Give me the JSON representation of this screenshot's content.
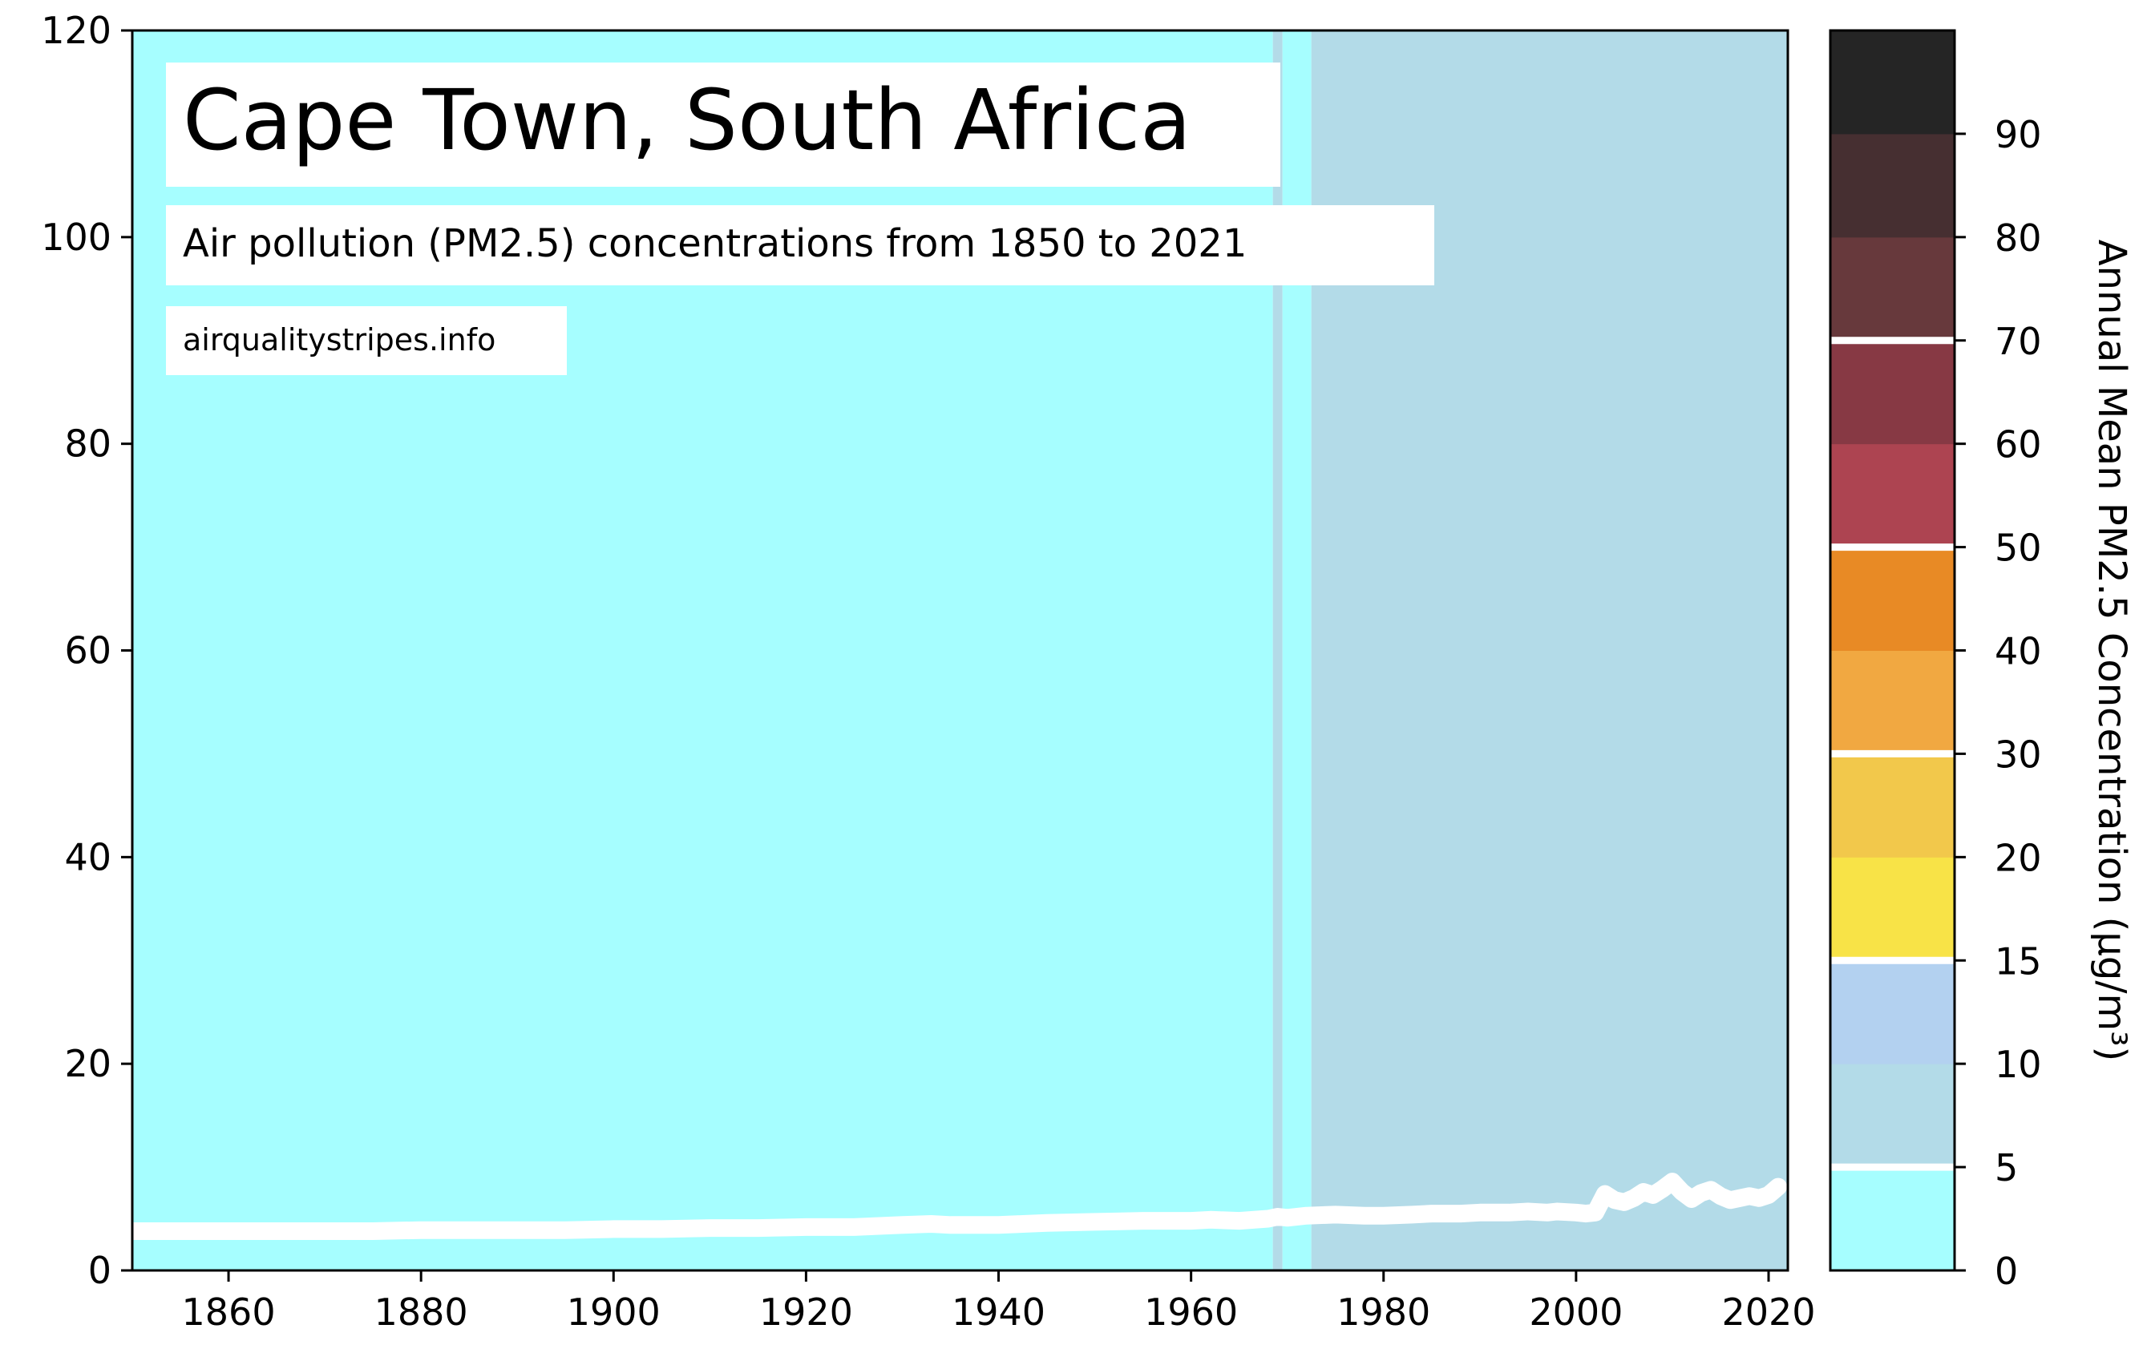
{
  "chart_data": {
    "type": "line",
    "title": "Cape Town, South Africa",
    "subtitle": "Air pollution (PM2.5) concentrations from 1850 to 2021",
    "source": "airqualitystripes.info",
    "xlim": [
      1850,
      2022
    ],
    "ylim": [
      0,
      120
    ],
    "x_ticks": [
      1860,
      1880,
      1900,
      1920,
      1940,
      1960,
      1980,
      2000,
      2020
    ],
    "y_ticks": [
      0,
      20,
      40,
      60,
      80,
      100,
      120
    ],
    "grid": false,
    "series": [
      {
        "color": "#ffffff",
        "x": [
          1850,
          1855,
          1860,
          1865,
          1870,
          1875,
          1880,
          1885,
          1890,
          1895,
          1900,
          1905,
          1910,
          1915,
          1920,
          1925,
          1930,
          1933,
          1935,
          1940,
          1945,
          1950,
          1955,
          1960,
          1962,
          1965,
          1968,
          1969,
          1970,
          1972,
          1975,
          1978,
          1980,
          1983,
          1985,
          1988,
          1990,
          1993,
          1995,
          1997,
          1998,
          2000,
          2001,
          2002,
          2003,
          2004,
          2005,
          2006,
          2007,
          2008,
          2009,
          2010,
          2011,
          2012,
          2013,
          2014,
          2015,
          2016,
          2017,
          2018,
          2019,
          2020,
          2021
        ],
        "y": [
          3.8,
          3.8,
          3.8,
          3.8,
          3.8,
          3.8,
          3.9,
          3.9,
          3.9,
          3.9,
          4.0,
          4.0,
          4.1,
          4.1,
          4.2,
          4.2,
          4.4,
          4.5,
          4.4,
          4.4,
          4.6,
          4.7,
          4.8,
          4.8,
          4.9,
          4.8,
          5.0,
          5.2,
          5.1,
          5.3,
          5.4,
          5.3,
          5.3,
          5.4,
          5.5,
          5.5,
          5.6,
          5.6,
          5.7,
          5.6,
          5.7,
          5.6,
          5.5,
          5.6,
          7.4,
          6.8,
          6.6,
          7.0,
          7.6,
          7.3,
          7.9,
          8.6,
          7.6,
          6.9,
          7.5,
          7.8,
          7.2,
          6.8,
          7.0,
          7.2,
          7.0,
          7.3,
          8.1
        ]
      }
    ],
    "background_stripes": [
      {
        "from": 1850,
        "to": 1968.5,
        "color": "#a6feff"
      },
      {
        "from": 1968.5,
        "to": 1969.5,
        "color": "#b3dbe8"
      },
      {
        "from": 1969.5,
        "to": 1972.5,
        "color": "#a6feff"
      },
      {
        "from": 1972.5,
        "to": 2022,
        "color": "#b3dbe8"
      }
    ],
    "colorbar": {
      "label": "Annual Mean PM2.5 Concentration (µg/m³)",
      "tick_labels": [
        "0",
        "5",
        "10",
        "15",
        "20",
        "30",
        "40",
        "50",
        "60",
        "70",
        "80",
        "90"
      ],
      "bands": [
        {
          "from": 0,
          "to": 5,
          "color": "#a6feff"
        },
        {
          "from": 5,
          "to": 10,
          "color": "#b3dbe8"
        },
        {
          "from": 10,
          "to": 15,
          "color": "#b3d1f0"
        },
        {
          "from": 15,
          "to": 20,
          "color": "#f8e347"
        },
        {
          "from": 20,
          "to": 30,
          "color": "#f2c84b"
        },
        {
          "from": 30,
          "to": 40,
          "color": "#f1a841"
        },
        {
          "from": 40,
          "to": 50,
          "color": "#e88a25"
        },
        {
          "from": 50,
          "to": 60,
          "color": "#ad4451"
        },
        {
          "from": 60,
          "to": 70,
          "color": "#873944"
        },
        {
          "from": 70,
          "to": 80,
          "color": "#67393c"
        },
        {
          "from": 80,
          "to": 90,
          "color": "#462f31"
        },
        {
          "from": 90,
          "to": 100,
          "color": "#252525"
        }
      ],
      "white_lines_at": [
        5,
        15,
        30,
        50,
        70
      ]
    }
  }
}
